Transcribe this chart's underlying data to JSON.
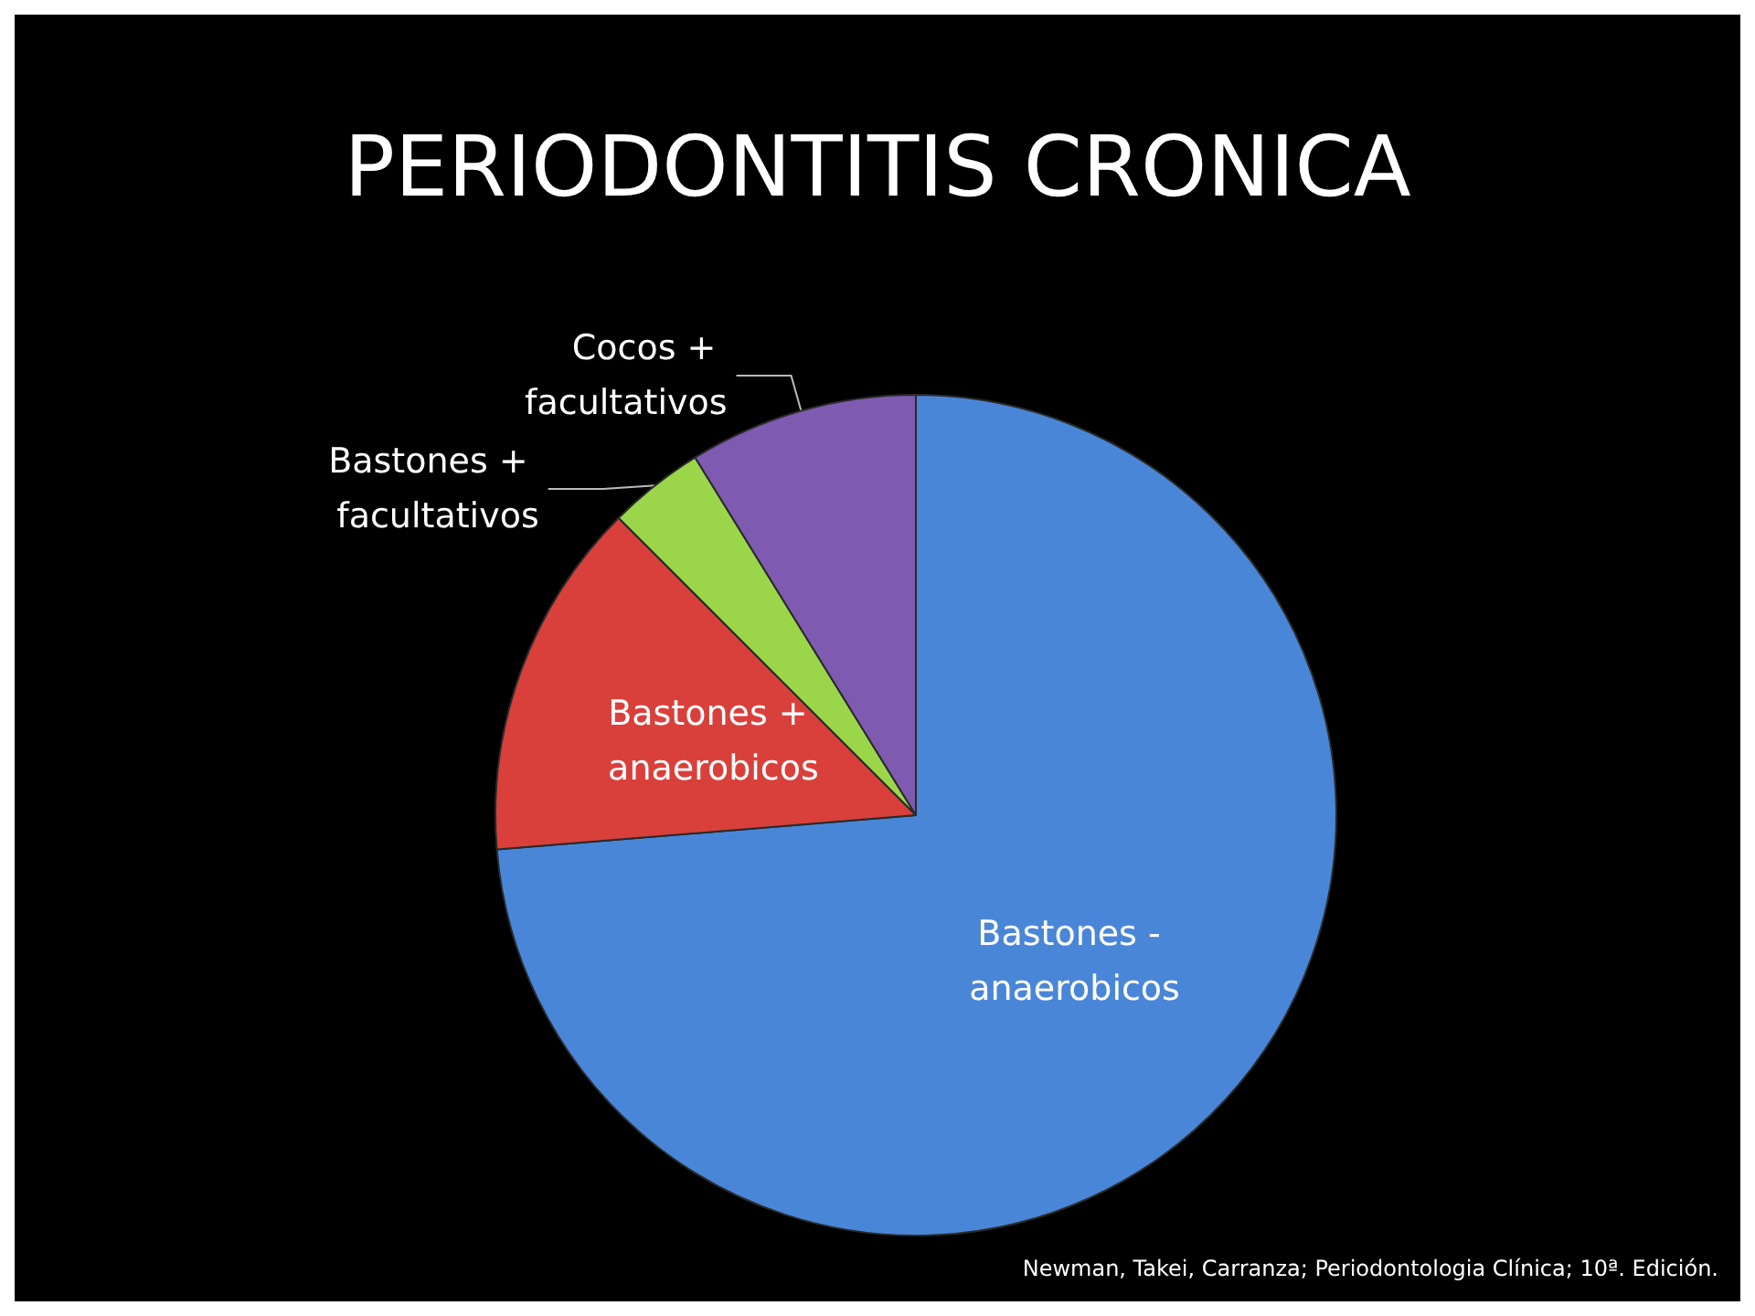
{
  "chart_data": {
    "type": "pie",
    "title": "PERIODONTITIS CRONICA",
    "categories": [
      "Bastones - anaerobicos",
      "Bastones + anaerobicos",
      "Bastones + facultativos",
      "Cocos + facultativos"
    ],
    "values": [
      73.7,
      13.8,
      3.7,
      8.8
    ],
    "colors": [
      "#4a86d8",
      "#d9403b",
      "#9bd64a",
      "#7e5ab0"
    ],
    "legend": false,
    "annotations": [
      "Newman, Takei, Carranza; Periodontologia Clínica; 10ª. Edición."
    ]
  }
}
